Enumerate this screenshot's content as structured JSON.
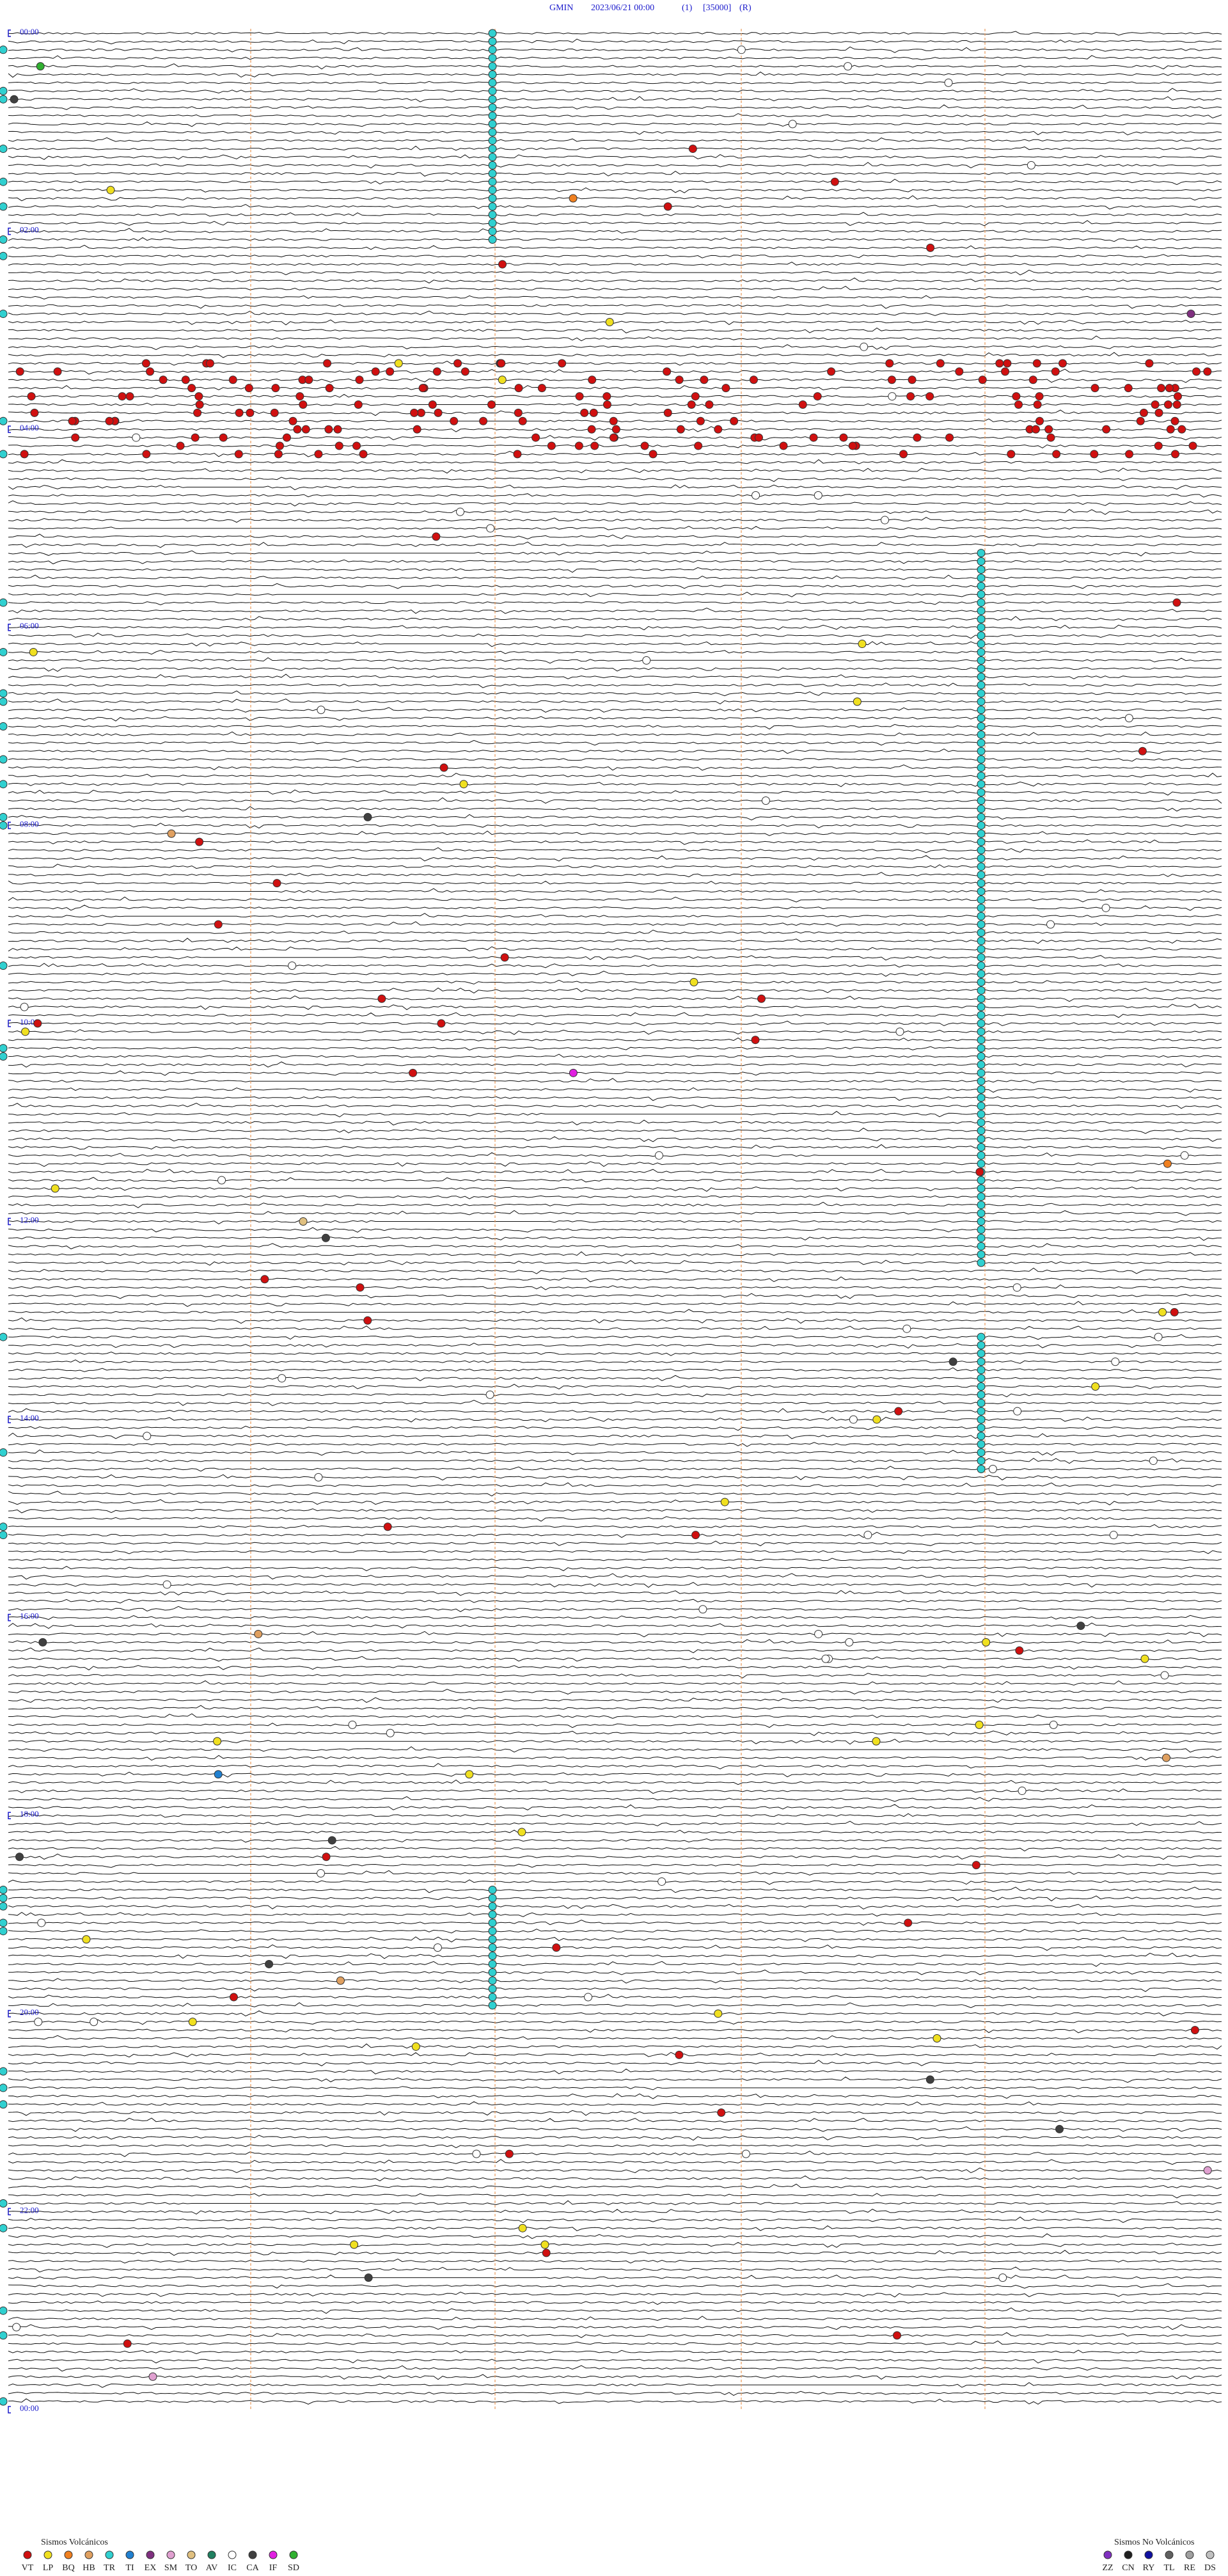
{
  "header": {
    "station": "GMIN",
    "datetime": "2023/06/21 00:00",
    "channel": "(1)",
    "gain": "[35000]",
    "mode": "(R)"
  },
  "hour_labels": [
    "00:00",
    "02:00",
    "04:00",
    "06:00",
    "08:00",
    "10:00",
    "12:00",
    "14:00",
    "16:00",
    "18:00",
    "20:00",
    "22:00",
    "00:00"
  ],
  "legend_volcanic": {
    "title": "Sismos Volcánicos",
    "items": [
      {
        "code": "VT",
        "color": "#d01010"
      },
      {
        "code": "LP",
        "color": "#f0e020"
      },
      {
        "code": "BQ",
        "color": "#f08020"
      },
      {
        "code": "HB",
        "color": "#e0a060"
      },
      {
        "code": "TR",
        "color": "#30d0d0"
      },
      {
        "code": "TI",
        "color": "#2080d0"
      },
      {
        "code": "EX",
        "color": "#803080"
      },
      {
        "code": "SM",
        "color": "#e0a0d0"
      },
      {
        "code": "TO",
        "color": "#e0c080"
      },
      {
        "code": "AV",
        "color": "#208060"
      },
      {
        "code": "IC",
        "color": "#ffffff"
      },
      {
        "code": "CA",
        "color": "#404040"
      },
      {
        "code": "IF",
        "color": "#e020e0"
      },
      {
        "code": "SD",
        "color": "#30b030"
      }
    ]
  },
  "legend_non_volcanic": {
    "title": "Sismos No Volcánicos",
    "items": [
      {
        "code": "ZZ",
        "color": "#8030c0"
      },
      {
        "code": "CN",
        "color": "#202020"
      },
      {
        "code": "RY",
        "color": "#1010a0"
      },
      {
        "code": "TL",
        "color": "#606060"
      },
      {
        "code": "RE",
        "color": "#a0a0a0"
      },
      {
        "code": "DS",
        "color": "#c0c0c0"
      }
    ]
  }
}
